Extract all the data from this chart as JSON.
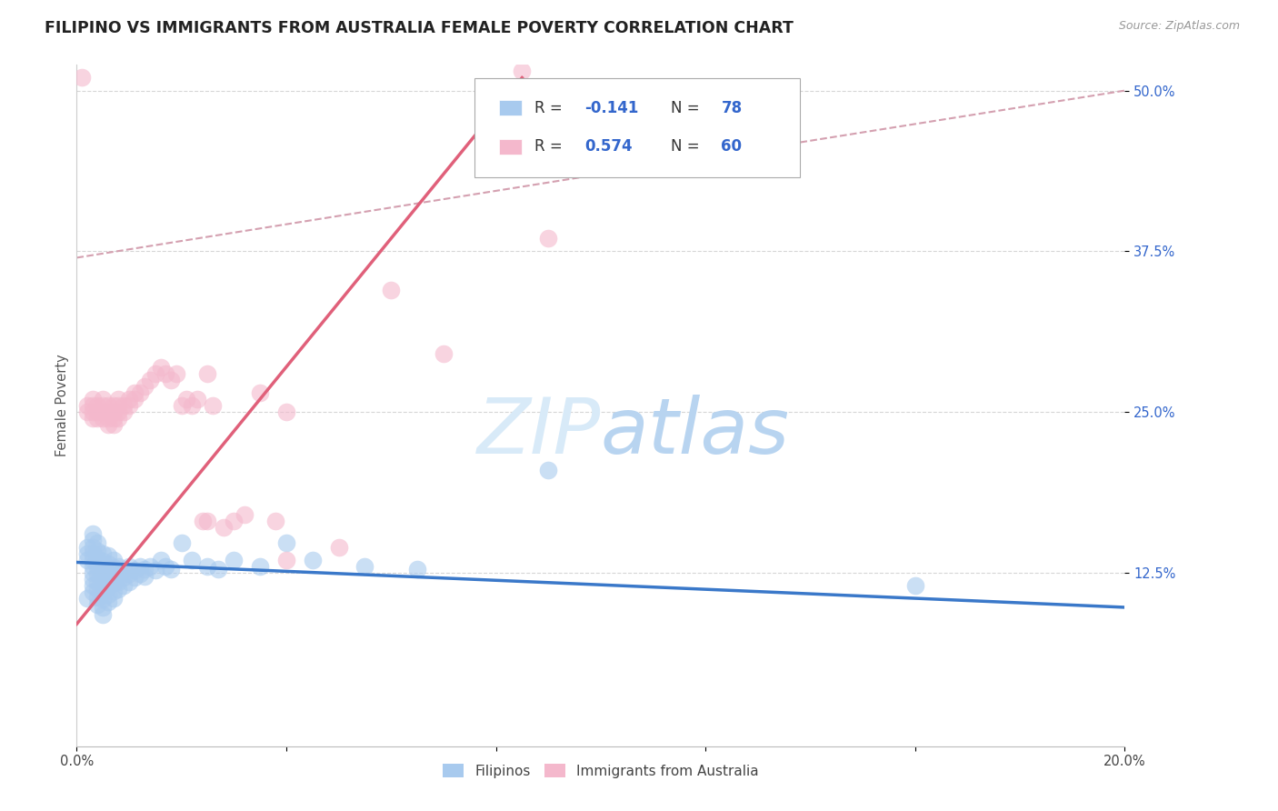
{
  "title": "FILIPINO VS IMMIGRANTS FROM AUSTRALIA FEMALE POVERTY CORRELATION CHART",
  "source": "Source: ZipAtlas.com",
  "ylabel": "Female Poverty",
  "xlim": [
    0.0,
    0.2
  ],
  "ylim": [
    -0.01,
    0.52
  ],
  "yticks": [
    0.125,
    0.25,
    0.375,
    0.5
  ],
  "ytick_labels": [
    "12.5%",
    "25.0%",
    "37.5%",
    "50.0%"
  ],
  "xticks": [
    0.0,
    0.04,
    0.08,
    0.12,
    0.16,
    0.2
  ],
  "xtick_labels": [
    "0.0%",
    "",
    "",
    "",
    "",
    "20.0%"
  ],
  "r_filipino": -0.141,
  "n_filipino": 78,
  "r_australia": 0.574,
  "n_australia": 60,
  "filipino_color": "#a8caee",
  "australia_color": "#f4b8cc",
  "filipino_line_color": "#3a78c9",
  "australia_line_color": "#e0607a",
  "background_color": "#ffffff",
  "watermark_color": "#ddeeff",
  "legend_blue": "#3366cc",
  "title_color": "#222222",
  "title_fontsize": 12.5,
  "tick_fontsize": 10.5,
  "filipino_scatter": [
    [
      0.002,
      0.145
    ],
    [
      0.002,
      0.14
    ],
    [
      0.002,
      0.135
    ],
    [
      0.003,
      0.15
    ],
    [
      0.003,
      0.145
    ],
    [
      0.003,
      0.14
    ],
    [
      0.003,
      0.135
    ],
    [
      0.003,
      0.13
    ],
    [
      0.003,
      0.125
    ],
    [
      0.003,
      0.12
    ],
    [
      0.003,
      0.115
    ],
    [
      0.003,
      0.11
    ],
    [
      0.004,
      0.148
    ],
    [
      0.004,
      0.142
    ],
    [
      0.004,
      0.136
    ],
    [
      0.004,
      0.13
    ],
    [
      0.004,
      0.124
    ],
    [
      0.004,
      0.118
    ],
    [
      0.004,
      0.112
    ],
    [
      0.004,
      0.106
    ],
    [
      0.004,
      0.1
    ],
    [
      0.005,
      0.14
    ],
    [
      0.005,
      0.134
    ],
    [
      0.005,
      0.128
    ],
    [
      0.005,
      0.122
    ],
    [
      0.005,
      0.116
    ],
    [
      0.005,
      0.11
    ],
    [
      0.005,
      0.104
    ],
    [
      0.005,
      0.098
    ],
    [
      0.005,
      0.092
    ],
    [
      0.006,
      0.138
    ],
    [
      0.006,
      0.132
    ],
    [
      0.006,
      0.126
    ],
    [
      0.006,
      0.12
    ],
    [
      0.006,
      0.114
    ],
    [
      0.006,
      0.108
    ],
    [
      0.006,
      0.102
    ],
    [
      0.007,
      0.135
    ],
    [
      0.007,
      0.129
    ],
    [
      0.007,
      0.123
    ],
    [
      0.007,
      0.117
    ],
    [
      0.007,
      0.111
    ],
    [
      0.007,
      0.105
    ],
    [
      0.008,
      0.13
    ],
    [
      0.008,
      0.124
    ],
    [
      0.008,
      0.118
    ],
    [
      0.008,
      0.112
    ],
    [
      0.009,
      0.127
    ],
    [
      0.009,
      0.121
    ],
    [
      0.009,
      0.115
    ],
    [
      0.01,
      0.13
    ],
    [
      0.01,
      0.124
    ],
    [
      0.01,
      0.118
    ],
    [
      0.011,
      0.127
    ],
    [
      0.011,
      0.121
    ],
    [
      0.012,
      0.13
    ],
    [
      0.012,
      0.124
    ],
    [
      0.013,
      0.128
    ],
    [
      0.013,
      0.122
    ],
    [
      0.014,
      0.13
    ],
    [
      0.015,
      0.127
    ],
    [
      0.016,
      0.135
    ],
    [
      0.017,
      0.13
    ],
    [
      0.018,
      0.128
    ],
    [
      0.02,
      0.148
    ],
    [
      0.022,
      0.135
    ],
    [
      0.025,
      0.13
    ],
    [
      0.027,
      0.128
    ],
    [
      0.03,
      0.135
    ],
    [
      0.035,
      0.13
    ],
    [
      0.04,
      0.148
    ],
    [
      0.045,
      0.135
    ],
    [
      0.055,
      0.13
    ],
    [
      0.065,
      0.128
    ],
    [
      0.09,
      0.205
    ],
    [
      0.16,
      0.115
    ],
    [
      0.002,
      0.105
    ],
    [
      0.003,
      0.155
    ]
  ],
  "australia_scatter": [
    [
      0.002,
      0.255
    ],
    [
      0.002,
      0.25
    ],
    [
      0.003,
      0.26
    ],
    [
      0.003,
      0.255
    ],
    [
      0.003,
      0.25
    ],
    [
      0.003,
      0.245
    ],
    [
      0.004,
      0.255
    ],
    [
      0.004,
      0.25
    ],
    [
      0.004,
      0.245
    ],
    [
      0.005,
      0.26
    ],
    [
      0.005,
      0.255
    ],
    [
      0.005,
      0.25
    ],
    [
      0.005,
      0.245
    ],
    [
      0.006,
      0.255
    ],
    [
      0.006,
      0.25
    ],
    [
      0.006,
      0.245
    ],
    [
      0.006,
      0.24
    ],
    [
      0.007,
      0.255
    ],
    [
      0.007,
      0.25
    ],
    [
      0.007,
      0.245
    ],
    [
      0.007,
      0.24
    ],
    [
      0.008,
      0.26
    ],
    [
      0.008,
      0.255
    ],
    [
      0.008,
      0.25
    ],
    [
      0.008,
      0.245
    ],
    [
      0.009,
      0.255
    ],
    [
      0.009,
      0.25
    ],
    [
      0.01,
      0.26
    ],
    [
      0.01,
      0.255
    ],
    [
      0.011,
      0.265
    ],
    [
      0.011,
      0.26
    ],
    [
      0.012,
      0.265
    ],
    [
      0.013,
      0.27
    ],
    [
      0.014,
      0.275
    ],
    [
      0.015,
      0.28
    ],
    [
      0.016,
      0.285
    ],
    [
      0.017,
      0.28
    ],
    [
      0.018,
      0.275
    ],
    [
      0.019,
      0.28
    ],
    [
      0.02,
      0.255
    ],
    [
      0.021,
      0.26
    ],
    [
      0.022,
      0.255
    ],
    [
      0.023,
      0.26
    ],
    [
      0.024,
      0.165
    ],
    [
      0.025,
      0.28
    ],
    [
      0.025,
      0.165
    ],
    [
      0.026,
      0.255
    ],
    [
      0.028,
      0.16
    ],
    [
      0.03,
      0.165
    ],
    [
      0.032,
      0.17
    ],
    [
      0.035,
      0.265
    ],
    [
      0.038,
      0.165
    ],
    [
      0.04,
      0.135
    ],
    [
      0.04,
      0.25
    ],
    [
      0.05,
      0.145
    ],
    [
      0.06,
      0.345
    ],
    [
      0.07,
      0.295
    ],
    [
      0.085,
      0.515
    ],
    [
      0.09,
      0.385
    ],
    [
      0.001,
      0.51
    ]
  ],
  "ref_line": [
    [
      0.0,
      0.37
    ],
    [
      0.2,
      0.5
    ]
  ],
  "line_filipino": [
    [
      0.0,
      0.133
    ],
    [
      0.2,
      0.098
    ]
  ],
  "line_australia": [
    [
      0.0,
      0.085
    ],
    [
      0.085,
      0.51
    ]
  ]
}
